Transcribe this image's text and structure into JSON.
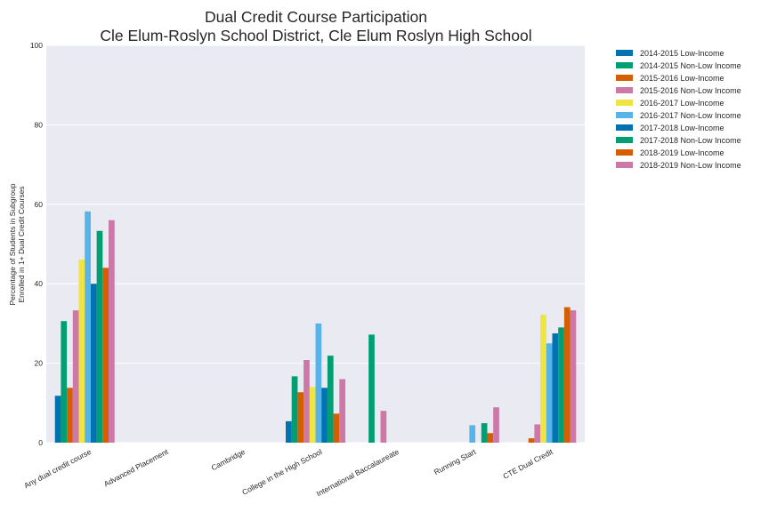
{
  "chart_data": {
    "type": "bar",
    "title": "Dual Credit Course Participation",
    "subtitle": "Cle Elum-Roslyn School District, Cle Elum Roslyn High School",
    "xlabel": "",
    "ylabel_line1": "Percentage of Students in Subgroup",
    "ylabel_line2": "Enrolled in 1+ Dual Credit Courses",
    "ylim": [
      0,
      100
    ],
    "yticks": [
      0,
      20,
      40,
      60,
      80,
      100
    ],
    "grid": true,
    "legend_position": "outside-right-top",
    "categories": [
      "Any dual credit course",
      "Advanced Placement",
      "Cambridge",
      "College in the High School",
      "International Baccalaureate",
      "Running Start",
      "CTE Dual Credit"
    ],
    "series": [
      {
        "name": "2014-2015 Low-Income",
        "color": "#0072b2",
        "values": [
          11.8,
          0,
          0,
          5.4,
          0,
          0,
          0
        ]
      },
      {
        "name": "2014-2015 Non-Low Income",
        "color": "#009e73",
        "values": [
          30.6,
          0,
          0,
          16.7,
          27.2,
          0,
          0
        ]
      },
      {
        "name": "2015-2016 Low-Income",
        "color": "#d55e00",
        "values": [
          13.8,
          0,
          0,
          12.7,
          0,
          0,
          1.1
        ]
      },
      {
        "name": "2015-2016 Non-Low Income",
        "color": "#cc79a7",
        "values": [
          33.3,
          0,
          0,
          20.8,
          8.0,
          0,
          4.6
        ]
      },
      {
        "name": "2016-2017 Low-Income",
        "color": "#f0e442",
        "values": [
          46.1,
          0,
          0,
          14.0,
          0,
          0,
          32.2
        ]
      },
      {
        "name": "2016-2017 Non-Low Income",
        "color": "#56b4e9",
        "values": [
          58.2,
          0,
          0,
          30.0,
          0,
          4.4,
          25.0
        ]
      },
      {
        "name": "2017-2018 Low-Income",
        "color": "#0072b2",
        "values": [
          40.0,
          0,
          0,
          13.8,
          0,
          0,
          27.5
        ]
      },
      {
        "name": "2017-2018 Non-Low Income",
        "color": "#009e73",
        "values": [
          53.3,
          0,
          0,
          21.9,
          0,
          4.9,
          29.0
        ]
      },
      {
        "name": "2018-2019 Low-Income",
        "color": "#d55e00",
        "values": [
          44.0,
          0,
          0,
          7.3,
          0,
          2.4,
          34.1
        ]
      },
      {
        "name": "2018-2019 Non-Low Income",
        "color": "#cc79a7",
        "values": [
          56.0,
          0,
          0,
          16.0,
          0,
          8.9,
          33.3
        ]
      }
    ]
  }
}
